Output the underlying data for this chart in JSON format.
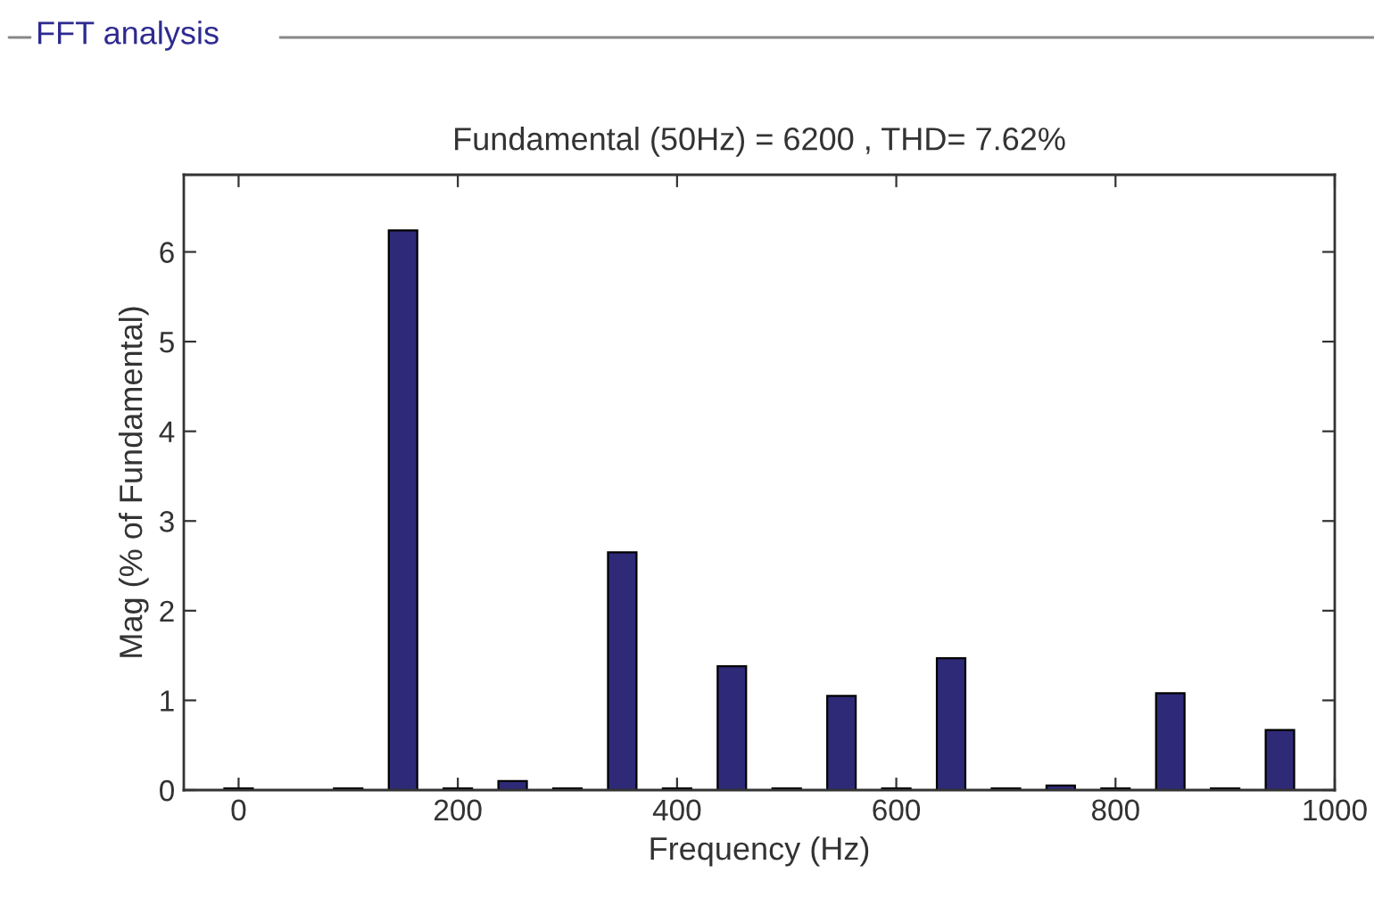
{
  "chart_data": {
    "type": "bar",
    "title": "Fundamental (50Hz) = 6200 , THD= 7.62%",
    "xlabel": "Frequency (Hz)",
    "ylabel": "Mag (% of Fundamental)",
    "annotations": [
      "FFT analysis"
    ],
    "x": [
      0,
      50,
      100,
      150,
      200,
      250,
      300,
      350,
      400,
      450,
      500,
      550,
      600,
      650,
      700,
      750,
      800,
      850,
      900,
      950
    ],
    "values": [
      0.02,
      null,
      0.02,
      6.24,
      0.02,
      0.1,
      0.02,
      2.65,
      0.02,
      1.38,
      0.02,
      1.05,
      0.02,
      1.47,
      0.02,
      0.05,
      0.02,
      1.08,
      0.02,
      0.67
    ],
    "color": "#2e2a78",
    "xlim": [
      -50,
      1000
    ],
    "xticks": [
      0,
      200,
      400,
      600,
      800,
      1000
    ],
    "ylim": [
      0,
      6.86
    ],
    "yticks": [
      0,
      1,
      2,
      3,
      4,
      5,
      6
    ],
    "grid": false,
    "legend": false
  }
}
